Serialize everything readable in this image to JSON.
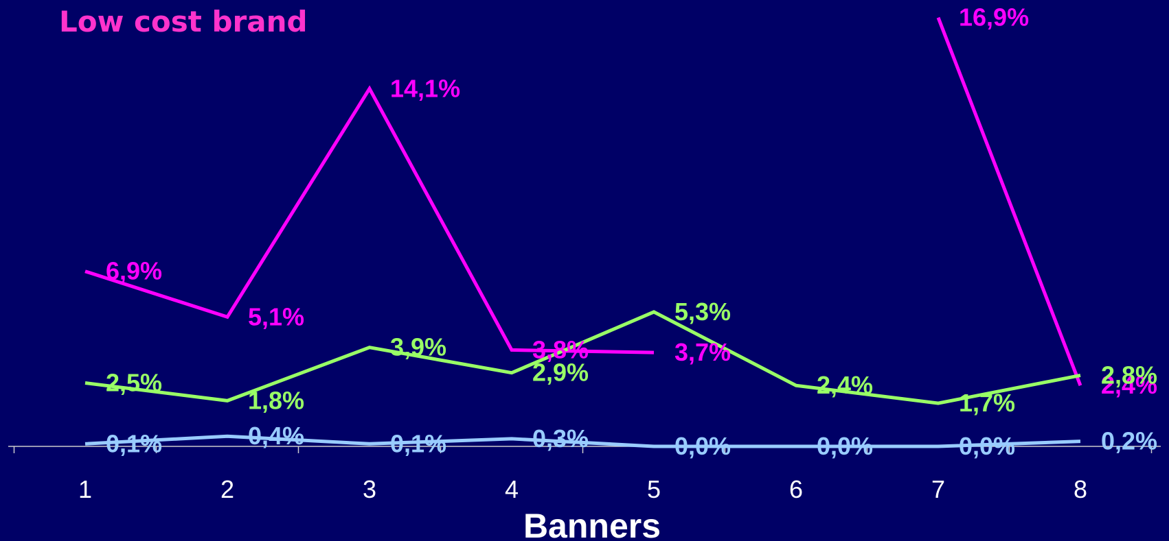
{
  "chart_data": {
    "type": "line",
    "title": "Low cost brand",
    "xlabel": "Banners",
    "ylabel": "",
    "categories": [
      "1",
      "2",
      "3",
      "4",
      "5",
      "6",
      "7",
      "8"
    ],
    "ylim": [
      0,
      17
    ],
    "grid": false,
    "legend": "none",
    "series": [
      {
        "color": "#ff00ff",
        "values": [
          6.9,
          5.1,
          14.1,
          3.8,
          3.7,
          null,
          16.9,
          2.4
        ],
        "labels": [
          "6,9%",
          "5,1%",
          "14,1%",
          "3,8%",
          "3,7%",
          null,
          "16,9%",
          "2,4%"
        ]
      },
      {
        "color": "#99ff66",
        "values": [
          2.5,
          1.8,
          3.9,
          2.9,
          5.3,
          2.4,
          1.7,
          2.8
        ],
        "labels": [
          "2,5%",
          "1,8%",
          "3,9%",
          "2,9%",
          "5,3%",
          "2,4%",
          "1,7%",
          "2,8%"
        ]
      },
      {
        "color": "#99ccff",
        "values": [
          0.1,
          0.4,
          0.1,
          0.3,
          0.0,
          0.0,
          0.0,
          0.2
        ],
        "labels": [
          "0,1%",
          "0,4%",
          "0,1%",
          "0,3%",
          "0,0%",
          "0,0%",
          "0,0%",
          "0,2%"
        ]
      }
    ]
  }
}
